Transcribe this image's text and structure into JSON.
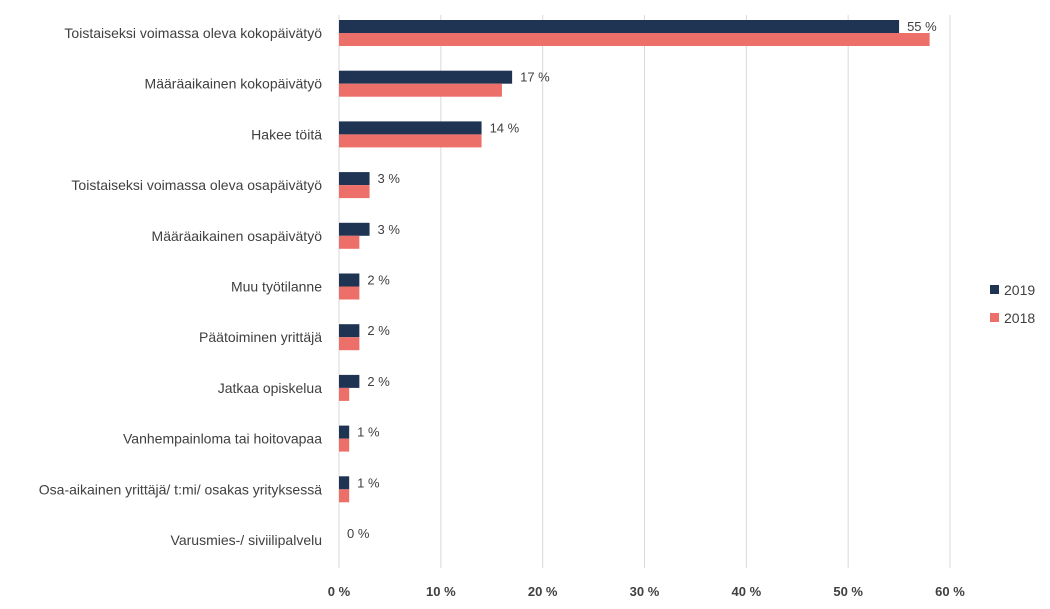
{
  "chart_data": {
    "type": "bar",
    "orientation": "horizontal",
    "categories": [
      "Toistaiseksi voimassa oleva kokopäivätyö",
      "Määräaikainen kokopäivätyö",
      "Hakee töitä",
      "Toistaiseksi voimassa oleva osapäivätyö",
      "Määräaikainen osapäivätyö",
      "Muu työtilanne",
      "Päätoiminen yrittäjä",
      "Jatkaa opiskelua",
      "Vanhempainloma tai hoitovapaa",
      "Osa-aikainen yrittäjä/ t:mi/ osakas yrityksessä",
      "Varusmies-/ siviilipalvelu"
    ],
    "series": [
      {
        "name": "2019",
        "color": "#1f3352",
        "values": [
          55,
          17,
          14,
          3,
          3,
          2,
          2,
          2,
          1,
          1,
          0
        ],
        "labels": [
          "55 %",
          "17 %",
          "14 %",
          "3 %",
          "3 %",
          "2 %",
          "2 %",
          "2 %",
          "1 %",
          "1 %",
          "0 %"
        ]
      },
      {
        "name": "2018",
        "color": "#ec6f69",
        "values": [
          58,
          16,
          14,
          3,
          2,
          2,
          2,
          1,
          1,
          1,
          0
        ]
      }
    ],
    "xlim": [
      0,
      60
    ],
    "xticks": [
      0,
      10,
      20,
      30,
      40,
      50,
      60
    ],
    "tick_labels": [
      "0 %",
      "10 %",
      "20 %",
      "30 %",
      "40 %",
      "50 %",
      "60 %"
    ],
    "grid": true,
    "legend_position": "right"
  }
}
